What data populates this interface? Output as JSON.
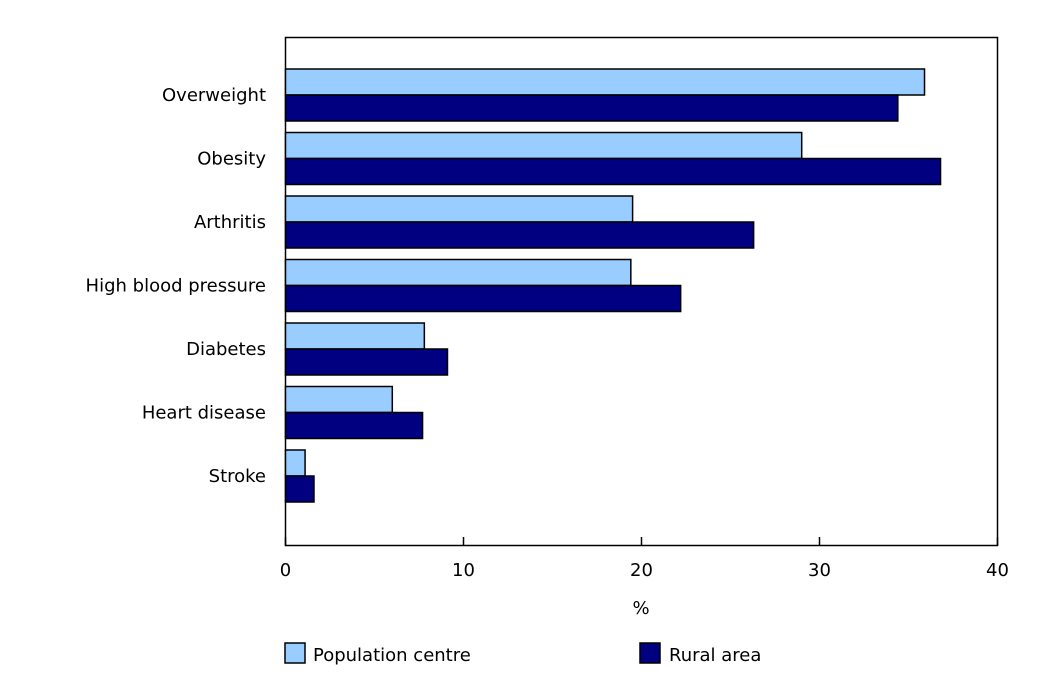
{
  "chart_data": {
    "type": "bar",
    "orientation": "horizontal",
    "categories": [
      "Overweight",
      "Obesity",
      "Arthritis",
      "High blood pressure",
      "Diabetes",
      "Heart disease",
      "Stroke"
    ],
    "series": [
      {
        "name": "Population centre",
        "color": "#99CCFF",
        "values": [
          35.9,
          29.0,
          19.5,
          19.4,
          7.8,
          6.0,
          1.1
        ]
      },
      {
        "name": "Rural area",
        "color": "#000080",
        "values": [
          34.4,
          36.8,
          26.3,
          22.2,
          9.1,
          7.7,
          1.6
        ]
      }
    ],
    "xlabel": "%",
    "xlim": [
      0,
      40
    ],
    "xticks": [
      "0",
      "10",
      "20",
      "30",
      "40"
    ],
    "grid": false,
    "legend_position": "bottom"
  }
}
